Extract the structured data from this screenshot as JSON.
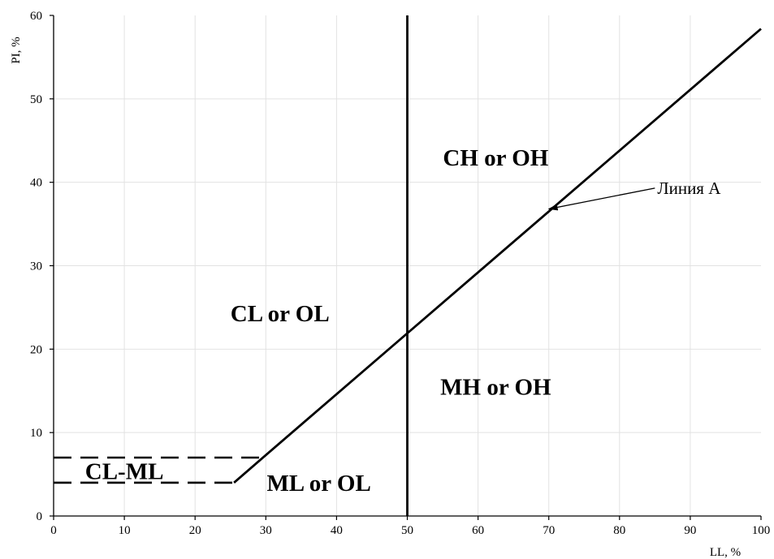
{
  "chart_data": {
    "type": "line",
    "xlabel": "LL, %",
    "ylabel": "PI, %",
    "xlim": [
      0,
      100
    ],
    "ylim": [
      0,
      60
    ],
    "x_ticks": [
      0,
      10,
      20,
      30,
      40,
      50,
      60,
      70,
      80,
      90,
      100
    ],
    "y_ticks": [
      0,
      10,
      20,
      30,
      40,
      50,
      60
    ],
    "grid": true,
    "series": [
      {
        "style": "solid",
        "points": [
          [
            25.5,
            4
          ],
          [
            30,
            7.3
          ],
          [
            100,
            58.4
          ]
        ]
      },
      {
        "style": "solid",
        "points": [
          [
            50,
            0
          ],
          [
            50,
            60
          ]
        ]
      },
      {
        "style": "dashed",
        "points": [
          [
            0,
            7
          ],
          [
            30,
            7
          ]
        ]
      },
      {
        "style": "dashed",
        "points": [
          [
            0,
            4
          ],
          [
            25.5,
            4
          ]
        ]
      }
    ],
    "zone_labels": [
      {
        "text": "CH or OH",
        "x": 62.5,
        "y": 43
      },
      {
        "text": "CL or OL",
        "x": 32,
        "y": 24.3
      },
      {
        "text": "MH or OH",
        "x": 62.5,
        "y": 15.5
      },
      {
        "text": "CL-ML",
        "x": 10,
        "y": 5.4
      },
      {
        "text": "ML or OL",
        "x": 37.5,
        "y": 4
      }
    ],
    "annotation": {
      "text": "Линия A",
      "arrow_from": [
        85,
        39.3
      ],
      "arrow_to": [
        70,
        36.8
      ]
    }
  }
}
